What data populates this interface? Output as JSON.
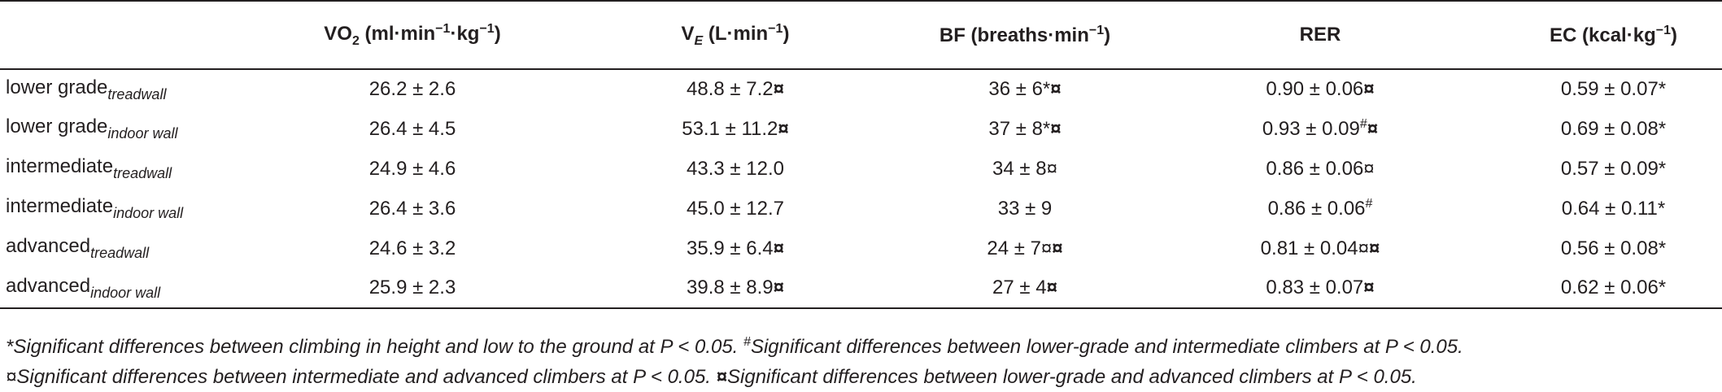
{
  "table": {
    "columns": [
      [
        {
          "text": "VO"
        },
        {
          "text": "2",
          "style": "sub"
        },
        {
          "text": " (ml·min"
        },
        {
          "text": "−1",
          "style": "sup"
        },
        {
          "text": "·kg"
        },
        {
          "text": "−1",
          "style": "sup"
        },
        {
          "text": ")"
        }
      ],
      [
        {
          "text": "V"
        },
        {
          "text": "E",
          "style": "sub-italic"
        },
        {
          "text": " (L·min"
        },
        {
          "text": "−1",
          "style": "sup"
        },
        {
          "text": ")"
        }
      ],
      [
        {
          "text": "BF (breaths·min"
        },
        {
          "text": "−1",
          "style": "sup"
        },
        {
          "text": ")"
        }
      ],
      [
        {
          "text": "RER"
        }
      ],
      [
        {
          "text": "EC (kcal·kg"
        },
        {
          "text": "−1",
          "style": "sup"
        },
        {
          "text": ")"
        }
      ]
    ],
    "rows": [
      {
        "label": "lower grade",
        "condition": "treadwall",
        "cells": [
          [
            {
              "text": "26.2 ± 2.6"
            }
          ],
          [
            {
              "text": "48.8 ± 7.2"
            },
            {
              "text": "¤",
              "style": "bold"
            }
          ],
          [
            {
              "text": "36 ± 6*"
            },
            {
              "text": "¤",
              "style": "bold"
            }
          ],
          [
            {
              "text": "0.90 ± 0.06"
            },
            {
              "text": "¤",
              "style": "bold"
            }
          ],
          [
            {
              "text": "0.59 ± 0.07*"
            }
          ]
        ]
      },
      {
        "label": "lower grade",
        "condition": "indoor wall",
        "cells": [
          [
            {
              "text": "26.4 ± 4.5"
            }
          ],
          [
            {
              "text": "53.1 ± 11.2"
            },
            {
              "text": "¤",
              "style": "bold"
            }
          ],
          [
            {
              "text": "37 ± 8*"
            },
            {
              "text": "¤",
              "style": "bold"
            }
          ],
          [
            {
              "text": "0.93 ± 0.09"
            },
            {
              "text": "#",
              "style": "sup"
            },
            {
              "text": "¤",
              "style": "bold"
            }
          ],
          [
            {
              "text": "0.69 ± 0.08*"
            }
          ]
        ]
      },
      {
        "label": "intermediate",
        "condition": "treadwall",
        "cells": [
          [
            {
              "text": "24.9 ± 4.6"
            }
          ],
          [
            {
              "text": "43.3 ± 12.0"
            }
          ],
          [
            {
              "text": "34 ± 8¤"
            }
          ],
          [
            {
              "text": "0.86 ± 0.06¤"
            }
          ],
          [
            {
              "text": "0.57 ± 0.09*"
            }
          ]
        ]
      },
      {
        "label": "intermediate",
        "condition": "indoor wall",
        "cells": [
          [
            {
              "text": "26.4 ± 3.6"
            }
          ],
          [
            {
              "text": "45.0 ± 12.7"
            }
          ],
          [
            {
              "text": "33 ± 9"
            }
          ],
          [
            {
              "text": "0.86 ± 0.06"
            },
            {
              "text": "#",
              "style": "sup"
            }
          ],
          [
            {
              "text": "0.64 ± 0.11*"
            }
          ]
        ]
      },
      {
        "label": "advanced",
        "condition": "treadwall",
        "cells": [
          [
            {
              "text": "24.6 ± 3.2"
            }
          ],
          [
            {
              "text": "35.9 ± 6.4"
            },
            {
              "text": "¤",
              "style": "bold"
            }
          ],
          [
            {
              "text": "24 ± 7¤"
            },
            {
              "text": "¤",
              "style": "bold"
            }
          ],
          [
            {
              "text": "0.81 ± 0.04¤"
            },
            {
              "text": "¤",
              "style": "bold"
            }
          ],
          [
            {
              "text": "0.56 ± 0.08*"
            }
          ]
        ]
      },
      {
        "label": "advanced",
        "condition": "indoor wall",
        "cells": [
          [
            {
              "text": "25.9 ± 2.3"
            }
          ],
          [
            {
              "text": "39.8 ± 8.9"
            },
            {
              "text": "¤",
              "style": "bold"
            }
          ],
          [
            {
              "text": "27 ± 4"
            },
            {
              "text": "¤",
              "style": "bold"
            }
          ],
          [
            {
              "text": "0.83 ± 0.07"
            },
            {
              "text": "¤",
              "style": "bold"
            }
          ],
          [
            {
              "text": "0.62 ± 0.06*"
            }
          ]
        ]
      }
    ],
    "footnotes": [
      [
        {
          "text": "*Significant differences between climbing in height and low to the ground at P < 0.05. "
        },
        {
          "text": "#",
          "style": "sup"
        },
        {
          "text": "Significant differences between lower-grade and intermediate climbers at P < 0.05."
        }
      ],
      [
        {
          "text": "¤Significant differences between intermediate and advanced climbers at P < 0.05. "
        },
        {
          "text": "¤",
          "style": "bold"
        },
        {
          "text": "Significant differences between lower-grade and advanced climbers at P < 0.05."
        }
      ]
    ]
  }
}
